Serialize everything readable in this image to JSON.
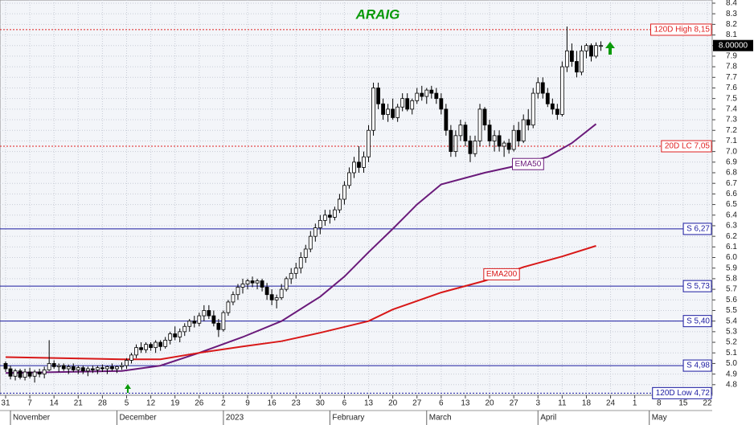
{
  "chart_data": {
    "type": "candlestick",
    "title": "ARAIG",
    "xlim": [
      -1.16,
      146
    ],
    "ylim": [
      4.7,
      8.43
    ],
    "xticks": [
      {
        "value": 0,
        "label": "31"
      },
      {
        "value": 5,
        "label": "7"
      },
      {
        "value": 10,
        "label": "14"
      },
      {
        "value": 15,
        "label": "21"
      },
      {
        "value": 20,
        "label": "28"
      },
      {
        "value": 25,
        "label": "5"
      },
      {
        "value": 30,
        "label": "12"
      },
      {
        "value": 35,
        "label": "19"
      },
      {
        "value": 40,
        "label": "26"
      },
      {
        "value": 45,
        "label": "2"
      },
      {
        "value": 50,
        "label": "9"
      },
      {
        "value": 55,
        "label": "16"
      },
      {
        "value": 60,
        "label": "23"
      },
      {
        "value": 65,
        "label": "30"
      },
      {
        "value": 70,
        "label": "6"
      },
      {
        "value": 75,
        "label": "13"
      },
      {
        "value": 80,
        "label": "20"
      },
      {
        "value": 85,
        "label": "27"
      },
      {
        "value": 90,
        "label": "6"
      },
      {
        "value": 95,
        "label": "13"
      },
      {
        "value": 100,
        "label": "20"
      },
      {
        "value": 105,
        "label": "27"
      },
      {
        "value": 110,
        "label": "3"
      },
      {
        "value": 115,
        "label": "11"
      },
      {
        "value": 120,
        "label": "18"
      },
      {
        "value": 125,
        "label": "24"
      },
      {
        "value": 130,
        "label": "1"
      },
      {
        "value": 135,
        "label": "8"
      },
      {
        "value": 140,
        "label": "15"
      },
      {
        "value": 145,
        "label": "22"
      }
    ],
    "months": [
      {
        "value": 1,
        "label": "November"
      },
      {
        "value": 23,
        "label": "December"
      },
      {
        "value": 45,
        "label": "2023"
      },
      {
        "value": 67,
        "label": "February"
      },
      {
        "value": 87,
        "label": "March"
      },
      {
        "value": 110,
        "label": "April"
      },
      {
        "value": 133,
        "label": "May"
      }
    ],
    "yticks": [
      4.8,
      4.9,
      {
        "value": 5,
        "label": "5.0"
      },
      5.1,
      5.2,
      5.3,
      5.4,
      5.5,
      5.6,
      5.7,
      5.8,
      5.9,
      {
        "value": 6,
        "label": "6.0"
      },
      6.1,
      6.2,
      6.3,
      6.4,
      6.5,
      6.6,
      6.7,
      6.8,
      6.9,
      {
        "value": 7,
        "label": "7.0"
      },
      7.1,
      7.2,
      7.3,
      7.4,
      7.5,
      7.6,
      7.7,
      7.8,
      7.9,
      {
        "value": 8,
        "label": "8.0"
      },
      8.1,
      8.2,
      8.3,
      8.4
    ],
    "grid": true,
    "last_price": {
      "value": 8,
      "label": "8.00000"
    },
    "up_color": "#ffffff",
    "down_color": "#000000",
    "ohlc": [
      [
        5.0,
        5.02,
        4.92,
        4.95
      ],
      [
        4.95,
        4.98,
        4.85,
        4.88
      ],
      [
        4.88,
        4.95,
        4.84,
        4.93
      ],
      [
        4.93,
        4.95,
        4.85,
        4.87
      ],
      [
        4.87,
        4.95,
        4.84,
        4.92
      ],
      [
        4.92,
        4.96,
        4.86,
        4.88
      ],
      [
        4.88,
        4.94,
        4.82,
        4.92
      ],
      [
        4.92,
        4.95,
        4.87,
        4.9
      ],
      [
        4.9,
        4.97,
        4.86,
        4.94
      ],
      [
        4.94,
        5.22,
        4.93,
        5.0
      ],
      [
        5.0,
        5.03,
        4.95,
        4.97
      ],
      [
        4.97,
        5.0,
        4.92,
        4.98
      ],
      [
        4.98,
        5.0,
        4.93,
        4.95
      ],
      [
        4.95,
        4.99,
        4.9,
        4.97
      ],
      [
        4.97,
        5.0,
        4.92,
        4.94
      ],
      [
        4.94,
        4.98,
        4.9,
        4.96
      ],
      [
        4.96,
        4.98,
        4.9,
        4.93
      ],
      [
        4.93,
        4.97,
        4.88,
        4.95
      ],
      [
        4.95,
        4.98,
        4.91,
        4.94
      ],
      [
        4.94,
        4.98,
        4.9,
        4.96
      ],
      [
        4.96,
        4.99,
        4.92,
        4.95
      ],
      [
        4.95,
        4.98,
        4.9,
        4.97
      ],
      [
        4.97,
        5.0,
        4.93,
        4.95
      ],
      [
        4.95,
        4.98,
        4.91,
        4.97
      ],
      [
        4.97,
        5.01,
        4.94,
        4.98
      ],
      [
        4.98,
        5.05,
        4.95,
        5.03
      ],
      [
        5.03,
        5.1,
        5.0,
        5.08
      ],
      [
        5.08,
        5.18,
        5.05,
        5.15
      ],
      [
        5.15,
        5.2,
        5.1,
        5.13
      ],
      [
        5.13,
        5.2,
        5.1,
        5.18
      ],
      [
        5.18,
        5.2,
        5.12,
        5.15
      ],
      [
        5.15,
        5.22,
        5.1,
        5.2
      ],
      [
        5.2,
        5.22,
        5.12,
        5.16
      ],
      [
        5.16,
        5.25,
        5.14,
        5.22
      ],
      [
        5.22,
        5.3,
        5.18,
        5.28
      ],
      [
        5.28,
        5.35,
        5.22,
        5.25
      ],
      [
        5.25,
        5.33,
        5.2,
        5.3
      ],
      [
        5.3,
        5.38,
        5.26,
        5.35
      ],
      [
        5.35,
        5.42,
        5.3,
        5.4
      ],
      [
        5.4,
        5.45,
        5.34,
        5.38
      ],
      [
        5.38,
        5.48,
        5.35,
        5.45
      ],
      [
        5.45,
        5.55,
        5.4,
        5.5
      ],
      [
        5.5,
        5.55,
        5.42,
        5.45
      ],
      [
        5.45,
        5.5,
        5.35,
        5.38
      ],
      [
        5.38,
        5.42,
        5.25,
        5.32
      ],
      [
        5.32,
        5.5,
        5.3,
        5.48
      ],
      [
        5.48,
        5.6,
        5.45,
        5.58
      ],
      [
        5.58,
        5.68,
        5.55,
        5.65
      ],
      [
        5.65,
        5.75,
        5.6,
        5.72
      ],
      [
        5.72,
        5.8,
        5.66,
        5.75
      ],
      [
        5.75,
        5.8,
        5.7,
        5.78
      ],
      [
        5.78,
        5.82,
        5.72,
        5.76
      ],
      [
        5.76,
        5.8,
        5.7,
        5.78
      ],
      [
        5.78,
        5.8,
        5.68,
        5.72
      ],
      [
        5.72,
        5.76,
        5.6,
        5.65
      ],
      [
        5.65,
        5.7,
        5.55,
        5.6
      ],
      [
        5.6,
        5.65,
        5.52,
        5.62
      ],
      [
        5.62,
        5.75,
        5.6,
        5.7
      ],
      [
        5.7,
        5.82,
        5.68,
        5.8
      ],
      [
        5.8,
        5.9,
        5.75,
        5.85
      ],
      [
        5.85,
        5.95,
        5.8,
        5.9
      ],
      [
        5.9,
        6.05,
        5.85,
        6.0
      ],
      [
        6.0,
        6.12,
        5.95,
        6.08
      ],
      [
        6.08,
        6.25,
        6.05,
        6.2
      ],
      [
        6.2,
        6.32,
        6.15,
        6.28
      ],
      [
        6.28,
        6.4,
        6.22,
        6.35
      ],
      [
        6.35,
        6.45,
        6.3,
        6.4
      ],
      [
        6.4,
        6.45,
        6.32,
        6.38
      ],
      [
        6.38,
        6.48,
        6.35,
        6.45
      ],
      [
        6.45,
        6.6,
        6.42,
        6.55
      ],
      [
        6.55,
        6.72,
        6.5,
        6.68
      ],
      [
        6.68,
        6.85,
        6.65,
        6.8
      ],
      [
        6.8,
        6.95,
        6.75,
        6.9
      ],
      [
        6.9,
        7.05,
        6.8,
        6.85
      ],
      [
        6.85,
        7.0,
        6.8,
        6.95
      ],
      [
        6.95,
        7.25,
        6.9,
        7.2
      ],
      [
        7.2,
        7.65,
        7.15,
        7.6
      ],
      [
        7.6,
        7.65,
        7.4,
        7.45
      ],
      [
        7.45,
        7.5,
        7.3,
        7.35
      ],
      [
        7.35,
        7.45,
        7.28,
        7.4
      ],
      [
        7.4,
        7.5,
        7.3,
        7.32
      ],
      [
        7.32,
        7.45,
        7.28,
        7.42
      ],
      [
        7.42,
        7.55,
        7.38,
        7.5
      ],
      [
        7.5,
        7.55,
        7.38,
        7.4
      ],
      [
        7.4,
        7.5,
        7.35,
        7.48
      ],
      [
        7.48,
        7.6,
        7.45,
        7.55
      ],
      [
        7.55,
        7.62,
        7.48,
        7.52
      ],
      [
        7.52,
        7.6,
        7.45,
        7.58
      ],
      [
        7.58,
        7.62,
        7.5,
        7.55
      ],
      [
        7.55,
        7.6,
        7.45,
        7.5
      ],
      [
        7.5,
        7.55,
        7.35,
        7.4
      ],
      [
        7.4,
        7.45,
        7.15,
        7.2
      ],
      [
        7.2,
        7.25,
        6.95,
        7.0
      ],
      [
        7.0,
        7.2,
        6.95,
        7.15
      ],
      [
        7.15,
        7.3,
        7.1,
        7.25
      ],
      [
        7.25,
        7.28,
        7.05,
        7.1
      ],
      [
        7.1,
        7.15,
        6.9,
        6.98
      ],
      [
        6.98,
        7.15,
        6.95,
        7.1
      ],
      [
        7.1,
        7.45,
        7.05,
        7.4
      ],
      [
        7.4,
        7.42,
        7.2,
        7.25
      ],
      [
        7.25,
        7.3,
        7.05,
        7.1
      ],
      [
        7.1,
        7.2,
        7.0,
        7.15
      ],
      [
        7.15,
        7.2,
        7.0,
        7.05
      ],
      [
        7.05,
        7.1,
        6.95,
        7.08
      ],
      [
        7.08,
        7.12,
        6.98,
        7.02
      ],
      [
        7.02,
        7.25,
        7.0,
        7.2
      ],
      [
        7.2,
        7.28,
        7.05,
        7.1
      ],
      [
        7.1,
        7.35,
        7.08,
        7.3
      ],
      [
        7.3,
        7.4,
        7.2,
        7.25
      ],
      [
        7.25,
        7.6,
        7.22,
        7.55
      ],
      [
        7.55,
        7.7,
        7.5,
        7.65
      ],
      [
        7.65,
        7.7,
        7.5,
        7.55
      ],
      [
        7.55,
        7.6,
        7.42,
        7.45
      ],
      [
        7.45,
        7.5,
        7.35,
        7.4
      ],
      [
        7.4,
        7.45,
        7.3,
        7.35
      ],
      [
        7.35,
        7.85,
        7.33,
        7.8
      ],
      [
        7.8,
        8.18,
        7.75,
        7.95
      ],
      [
        7.95,
        8.02,
        7.8,
        7.85
      ],
      [
        7.85,
        7.95,
        7.7,
        7.75
      ],
      [
        7.75,
        8.0,
        7.72,
        7.95
      ],
      [
        7.95,
        8.02,
        7.88,
        8.0
      ],
      [
        8.0,
        8.02,
        7.85,
        7.9
      ],
      [
        7.9,
        8.03,
        7.88,
        8.0
      ],
      [
        8.0,
        8.04,
        7.95,
        8.0
      ]
    ],
    "lines": [
      {
        "name": "EMA50",
        "color": "#6a1a7a",
        "x": [
          0,
          24,
          32,
          40,
          49,
          57,
          65,
          70,
          75,
          80,
          85,
          90,
          99,
          105,
          112,
          117,
          122
        ],
        "values": [
          4.91,
          4.93,
          4.98,
          5.1,
          5.25,
          5.4,
          5.63,
          5.82,
          6.05,
          6.27,
          6.5,
          6.69,
          6.8,
          6.86,
          6.95,
          7.08,
          7.26
        ]
      },
      {
        "name": "EMA200",
        "color": "#d81818",
        "x": [
          0,
          24,
          32,
          40,
          49,
          57,
          65,
          75,
          80,
          90,
          99,
          107,
          115,
          122
        ],
        "values": [
          5.06,
          5.04,
          5.04,
          5.1,
          5.16,
          5.21,
          5.29,
          5.4,
          5.51,
          5.67,
          5.78,
          5.91,
          6.01,
          6.11
        ]
      }
    ],
    "levels": [
      {
        "label": "120D High 8,15",
        "value": 8.15,
        "color": "#e02020",
        "style": "dotted"
      },
      {
        "label": "20D LC 7,05",
        "value": 7.05,
        "color": "#e02020",
        "style": "dotted"
      },
      {
        "label": "S 6,27",
        "value": 6.27,
        "color": "#1a1aa0",
        "style": "solid"
      },
      {
        "label": "S 5,73",
        "value": 5.73,
        "color": "#1a1aa0",
        "style": "solid"
      },
      {
        "label": "S 5,40",
        "value": 5.4,
        "color": "#1a1aa0",
        "style": "solid"
      },
      {
        "label": "S 4,98",
        "value": 4.98,
        "color": "#1a1aa0",
        "style": "solid"
      },
      {
        "label": "120D Low 4,72",
        "value": 4.72,
        "color": "#1a1aa0",
        "style": "dotted"
      }
    ]
  }
}
